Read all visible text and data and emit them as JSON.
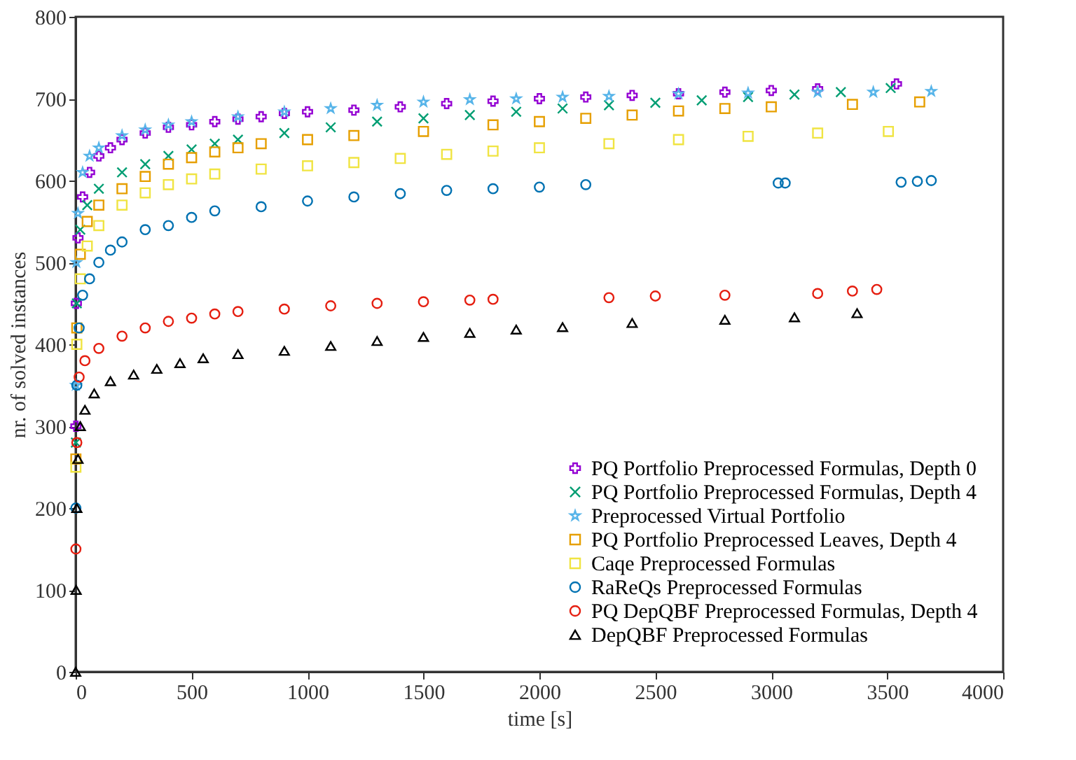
{
  "chart_data": {
    "type": "scatter",
    "xlabel": "time [s]",
    "ylabel": "nr. of solved instances",
    "xlim": [
      0,
      4000
    ],
    "ylim": [
      0,
      800
    ],
    "xticks": [
      0,
      500,
      1000,
      1500,
      2000,
      2500,
      3000,
      3500,
      4000
    ],
    "yticks": [
      0,
      100,
      200,
      300,
      400,
      500,
      600,
      700,
      800
    ],
    "grid": false,
    "legend": "bottom right",
    "series": [
      {
        "name": "PQ Portfolio Preprocessed Formulas, Depth 0",
        "color": "#9400d3",
        "marker": "plus",
        "x": [
          1,
          3,
          10,
          30,
          60,
          100,
          150,
          200,
          300,
          400,
          500,
          600,
          700,
          800,
          900,
          1000,
          1200,
          1400,
          1600,
          1800,
          2000,
          2200,
          2400,
          2600,
          2800,
          3000,
          3200,
          3540
        ],
        "values": [
          300,
          450,
          530,
          580,
          610,
          630,
          640,
          650,
          658,
          665,
          668,
          672,
          675,
          678,
          682,
          684,
          686,
          690,
          694,
          697,
          700,
          702,
          704,
          706,
          708,
          710,
          712,
          718
        ]
      },
      {
        "name": "PQ Portfolio Preprocessed Formulas, Depth 4",
        "color": "#009e73",
        "marker": "cross",
        "x": [
          1,
          5,
          20,
          50,
          100,
          200,
          300,
          400,
          500,
          600,
          700,
          900,
          1100,
          1300,
          1500,
          1700,
          1900,
          2100,
          2300,
          2500,
          2700,
          2900,
          3100,
          3300,
          3515
        ],
        "values": [
          280,
          450,
          540,
          570,
          590,
          610,
          620,
          630,
          638,
          645,
          650,
          658,
          665,
          672,
          676,
          680,
          684,
          688,
          692,
          695,
          698,
          702,
          705,
          708,
          713
        ]
      },
      {
        "name": "Preprocessed Virtual Portfolio",
        "color": "#56b4e9",
        "marker": "star",
        "x": [
          1,
          3,
          10,
          30,
          60,
          100,
          200,
          300,
          400,
          500,
          700,
          900,
          1100,
          1300,
          1500,
          1700,
          1900,
          2100,
          2300,
          2600,
          2900,
          3200,
          3440,
          3690
        ],
        "values": [
          350,
          500,
          560,
          610,
          630,
          640,
          655,
          662,
          668,
          672,
          678,
          684,
          688,
          692,
          696,
          699,
          700,
          702,
          703,
          706,
          707,
          708,
          708,
          709
        ]
      },
      {
        "name": "PQ Portfolio Preprocessed Leaves, Depth 4",
        "color": "#e69f00",
        "marker": "square",
        "x": [
          1,
          5,
          20,
          50,
          100,
          200,
          300,
          400,
          500,
          600,
          700,
          800,
          1000,
          1200,
          1500,
          1800,
          2000,
          2200,
          2400,
          2600,
          2800,
          3000,
          3350,
          3640
        ],
        "values": [
          260,
          420,
          510,
          550,
          570,
          590,
          605,
          620,
          628,
          635,
          640,
          645,
          650,
          655,
          660,
          668,
          672,
          676,
          680,
          685,
          688,
          690,
          693,
          696
        ]
      },
      {
        "name": "Caqe Preprocessed Formulas",
        "color": "#f0e442",
        "marker": "square",
        "x": [
          1,
          5,
          20,
          50,
          100,
          200,
          300,
          400,
          500,
          600,
          800,
          1000,
          1200,
          1400,
          1600,
          1800,
          2000,
          2300,
          2600,
          2900,
          3200,
          3505
        ],
        "values": [
          250,
          400,
          480,
          520,
          545,
          570,
          585,
          595,
          602,
          608,
          614,
          618,
          622,
          627,
          632,
          636,
          640,
          645,
          650,
          654,
          658,
          660
        ]
      },
      {
        "name": "RaReQs Preprocessed Formulas",
        "color": "#0072b2",
        "marker": "circle",
        "x": [
          1,
          5,
          15,
          30,
          60,
          100,
          150,
          200,
          300,
          400,
          500,
          600,
          800,
          1000,
          1200,
          1400,
          1600,
          1800,
          2000,
          2200,
          3030,
          3060,
          3560,
          3630,
          3690
        ],
        "values": [
          200,
          350,
          420,
          460,
          480,
          500,
          515,
          525,
          540,
          545,
          555,
          563,
          568,
          575,
          580,
          584,
          588,
          590,
          592,
          595,
          597,
          597,
          598,
          599,
          600
        ]
      },
      {
        "name": "PQ DepQBF Preprocessed Formulas, Depth 4",
        "color": "#e51e10",
        "marker": "circle",
        "x": [
          1,
          5,
          15,
          40,
          100,
          200,
          300,
          400,
          500,
          600,
          700,
          900,
          1100,
          1300,
          1500,
          1700,
          1800,
          2300,
          2500,
          2800,
          3200,
          3350,
          3455
        ],
        "values": [
          150,
          280,
          360,
          380,
          395,
          410,
          420,
          428,
          432,
          437,
          440,
          443,
          447,
          450,
          452,
          454,
          455,
          457,
          459,
          460,
          462,
          465,
          467
        ]
      },
      {
        "name": "DepQBF Preprocessed Formulas",
        "color": "#000000",
        "marker": "triangle",
        "x": [
          0,
          2,
          5,
          10,
          20,
          40,
          80,
          150,
          250,
          350,
          450,
          550,
          700,
          900,
          1100,
          1300,
          1500,
          1700,
          1900,
          2100,
          2400,
          2800,
          3100,
          3370
        ],
        "values": [
          0,
          100,
          200,
          260,
          300,
          320,
          340,
          355,
          363,
          370,
          377,
          383,
          388,
          392,
          398,
          404,
          409,
          414,
          418,
          421,
          426,
          430,
          433,
          438
        ]
      }
    ]
  }
}
